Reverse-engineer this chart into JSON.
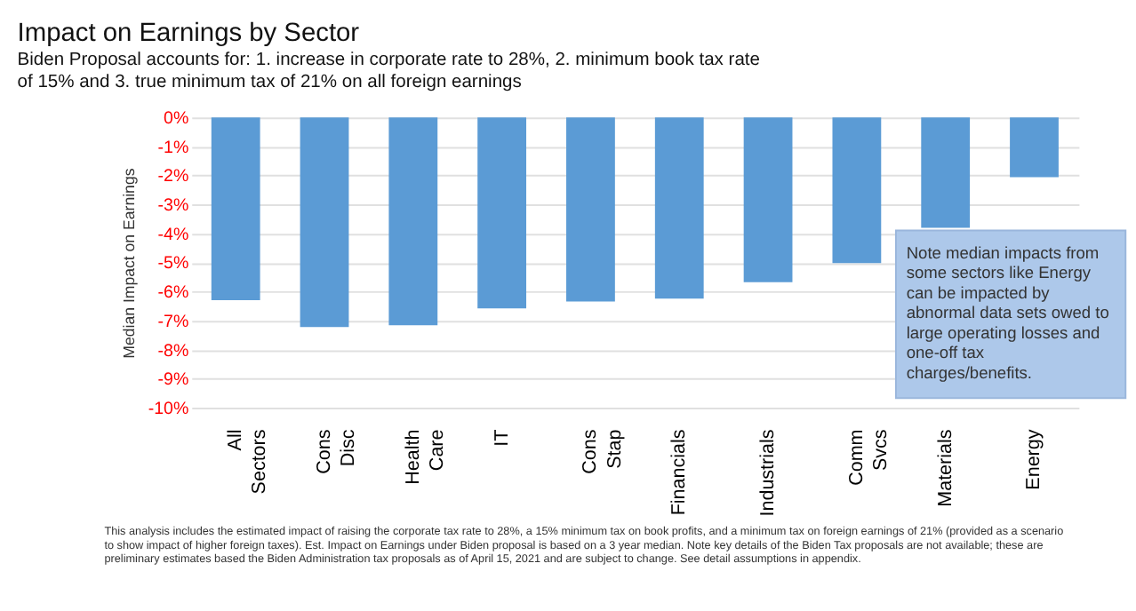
{
  "chart_data": {
    "type": "bar",
    "title": "Impact on Earnings by Sector",
    "subtitle": "Biden Proposal accounts for: 1. increase in corporate rate to 28%, 2. minimum book tax rate of 15% and 3. true minimum tax of 21% on all foreign earnings",
    "ylabel": "Median Impact on Earnings",
    "categories": [
      "All Sectors",
      "Cons Disc",
      "Health Care",
      "IT",
      "Cons Stap",
      "Financials",
      "Industrials",
      "Comm Svcs",
      "Materials",
      "Energy"
    ],
    "values": [
      -6.3,
      -7.22,
      -7.16,
      -6.58,
      -6.34,
      -6.24,
      -5.68,
      -5.02,
      -3.8,
      -2.06
    ],
    "color": "#5b9bd5",
    "ylim": [
      -10,
      0
    ],
    "yticks": [
      {
        "value": 0,
        "label": "0%"
      },
      {
        "value": -1,
        "label": "-1%"
      },
      {
        "value": -2,
        "label": "-2%"
      },
      {
        "value": -3,
        "label": "-3%"
      },
      {
        "value": -4,
        "label": "-4%"
      },
      {
        "value": -5,
        "label": "-5%"
      },
      {
        "value": -6,
        "label": "-6%"
      },
      {
        "value": -7,
        "label": "-7%"
      },
      {
        "value": -8,
        "label": "-8%"
      },
      {
        "value": -9,
        "label": "-9%"
      },
      {
        "value": -10,
        "label": "-10%"
      }
    ],
    "grid": "y",
    "annotations": [
      "Note median impacts from some sectors like Energy can be impacted by abnormal data sets owed to large operating losses and one-off tax charges/benefits.",
      "This analysis includes the estimated impact of raising the corporate tax rate to 28%, a 15% minimum tax on book profits, and a minimum tax on foreign earnings of 21% (provided as a scenario to show impact of higher foreign taxes). Est. Impact on Earnings under Biden proposal is based on a 3 year median. Note key details of the Biden Tax proposals are not available; these are preliminary estimates based the Biden Administration tax proposals as of April 15, 2021 and are subject to change. See detail assumptions in appendix."
    ]
  }
}
